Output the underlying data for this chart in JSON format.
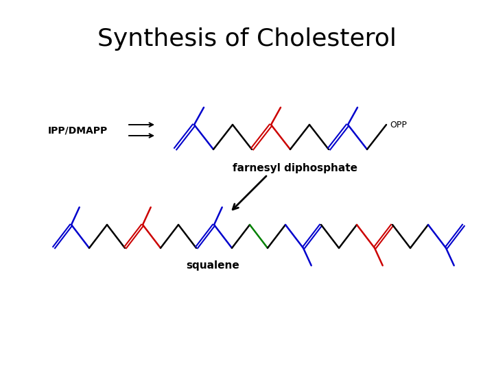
{
  "title": "Synthesis of Cholesterol",
  "title_fontsize": 26,
  "background_color": "#ffffff",
  "lw": 1.8,
  "lw_double": 1.5,
  "blue": "#0000cc",
  "red": "#cc0000",
  "black": "#000000",
  "green": "#008000",
  "label_ipp": "IPP/DMAPP",
  "label_farnesyl": "farnesyl diphosphate",
  "label_opp": "OPP",
  "label_squalene": "squalene"
}
